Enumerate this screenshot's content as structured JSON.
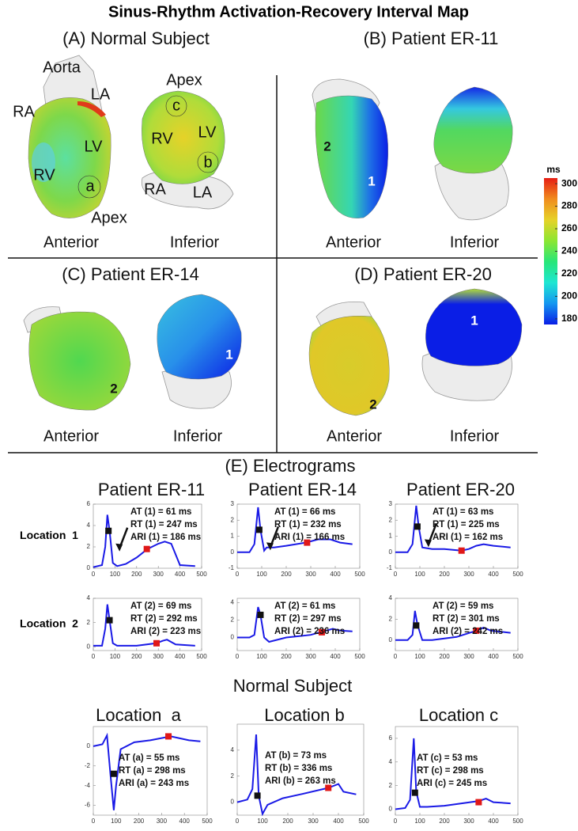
{
  "title": "Sinus-Rhythm Activation-Recovery Interval Map",
  "panels": [
    {
      "title": "(A) Normal Subject",
      "anterior": [
        "Aorta",
        "LA",
        "RA",
        "LV",
        "RV",
        "a",
        "Apex",
        "Anterior"
      ],
      "inferior": [
        "Apex",
        "c",
        "RV",
        "LV",
        "b",
        "RA",
        "LA",
        "Inferior"
      ]
    },
    {
      "title": "(B) Patient ER-11",
      "anterior": [
        "2",
        "1",
        "Anterior"
      ],
      "inferior": [
        "Inferior"
      ]
    },
    {
      "title": "(C) Patient ER-14",
      "anterior": [
        "2",
        "Anterior"
      ],
      "inferior": [
        "1",
        "Inferior"
      ]
    },
    {
      "title": "(D) Patient ER-20",
      "anterior": [
        "2",
        "Anterior"
      ],
      "inferior": [
        "1",
        "Inferior"
      ]
    }
  ],
  "colorbar": {
    "unit": "ms",
    "lim": [
      175,
      305
    ],
    "ticks": [
      180,
      200,
      220,
      240,
      260,
      280,
      300
    ],
    "colors": [
      "#0a1ee6",
      "#1496f0",
      "#1ee6d2",
      "#28e678",
      "#8ce632",
      "#e6d228",
      "#f08c1e",
      "#e61e14"
    ]
  },
  "electrograms": {
    "title": "(E) Electrograms",
    "patients": [
      "Patient ER-11",
      "Patient ER-14",
      "Patient ER-20"
    ],
    "locations": [
      "Location  1",
      "Location  2"
    ],
    "plots": [
      [
        {
          "ylim": [
            0,
            6
          ],
          "yticks": [
            0,
            2,
            4,
            6
          ],
          "xlim": [
            0,
            500
          ],
          "xticks": [
            0,
            100,
            200,
            300,
            400,
            500
          ],
          "annotations": [
            "AT (1)  = 61 ms",
            "RT (1)  = 247 ms",
            "ARI (1) = 186 ms"
          ],
          "trace": {
            "x": [
              0,
              40,
              55,
              65,
              75,
              90,
              110,
              150,
              200,
              250,
              300,
              330,
              360,
              400,
              470
            ],
            "y": [
              0.1,
              0.3,
              2,
              5,
              3.5,
              0.5,
              0.2,
              0.4,
              1,
              1.8,
              2.3,
              2.5,
              2.3,
              0.3,
              0.2
            ]
          },
          "at_marker": {
            "x": 70,
            "y": 3.5
          },
          "rt_marker": {
            "x": 247,
            "y": 1.8
          }
        },
        {
          "ylim": [
            -1,
            3
          ],
          "yticks": [
            -1,
            0,
            1,
            2,
            3
          ],
          "xlim": [
            0,
            500
          ],
          "xticks": [
            0,
            100,
            200,
            300,
            400,
            500
          ],
          "annotations": [
            "AT (1)  = 66 ms",
            "RT (1)  = 232 ms",
            "ARI (1) = 166 ms"
          ],
          "trace": {
            "x": [
              0,
              50,
              70,
              85,
              95,
              110,
              120,
              150,
              200,
              280,
              330,
              380,
              420,
              470
            ],
            "y": [
              0,
              0,
              0.5,
              2.8,
              1.4,
              0.1,
              0.3,
              0.3,
              0.4,
              0.6,
              0.8,
              0.8,
              0.6,
              0.5
            ]
          },
          "at_marker": {
            "x": 90,
            "y": 1.4
          },
          "rt_marker": {
            "x": 285,
            "y": 0.6
          }
        },
        {
          "ylim": [
            -1,
            3
          ],
          "yticks": [
            -1,
            0,
            1,
            2,
            3
          ],
          "xlim": [
            0,
            500
          ],
          "xticks": [
            0,
            100,
            200,
            300,
            400,
            500
          ],
          "annotations": [
            "AT (1)  = 63 ms",
            "RT (1)  = 225 ms",
            "ARI (1) = 162 ms"
          ],
          "trace": {
            "x": [
              0,
              50,
              70,
              85,
              95,
              110,
              150,
              200,
              270,
              300,
              330,
              360,
              400,
              470
            ],
            "y": [
              0,
              0,
              0.5,
              2.9,
              1.6,
              0.3,
              0.2,
              0.2,
              0.1,
              0.2,
              0.4,
              0.5,
              0.4,
              0.3
            ]
          },
          "at_marker": {
            "x": 90,
            "y": 1.6
          },
          "rt_marker": {
            "x": 270,
            "y": 0.1
          }
        }
      ],
      [
        {
          "ylim": [
            -0.3,
            4
          ],
          "yticks": [
            0,
            2,
            4
          ],
          "xlim": [
            0,
            500
          ],
          "xticks": [
            0,
            100,
            200,
            300,
            400,
            500
          ],
          "annotations": [
            "AT (2)  = 69 ms",
            "RT (2)  = 292 ms",
            "ARI (2) = 223 ms"
          ],
          "trace": {
            "x": [
              0,
              40,
              55,
              65,
              75,
              90,
              110,
              200,
              290,
              320,
              340,
              380,
              470
            ],
            "y": [
              0.1,
              0.1,
              1.5,
              3.5,
              2.2,
              0.3,
              0.1,
              0.1,
              0.3,
              0.5,
              0.6,
              0.2,
              0.1
            ]
          },
          "at_marker": {
            "x": 75,
            "y": 2.2
          },
          "rt_marker": {
            "x": 292,
            "y": 0.3
          }
        },
        {
          "ylim": [
            -1.5,
            4.5
          ],
          "yticks": [
            0,
            2,
            4
          ],
          "xlim": [
            0,
            500
          ],
          "xticks": [
            0,
            100,
            200,
            300,
            400,
            500
          ],
          "annotations": [
            "AT (2)  = 61 ms",
            "RT (2)  = 297 ms",
            "ARI (2) = 236 ms"
          ],
          "trace": {
            "x": [
              0,
              50,
              70,
              85,
              95,
              110,
              130,
              200,
              300,
              350,
              390,
              420,
              470
            ],
            "y": [
              0,
              0,
              0.3,
              3.5,
              2.6,
              0,
              -0.5,
              0,
              0.3,
              0.7,
              1,
              0.8,
              0.7
            ]
          },
          "at_marker": {
            "x": 95,
            "y": 2.6
          },
          "rt_marker": {
            "x": 345,
            "y": 0.6
          }
        },
        {
          "ylim": [
            -1,
            4
          ],
          "yticks": [
            0,
            2,
            4
          ],
          "xlim": [
            0,
            500
          ],
          "xticks": [
            0,
            100,
            200,
            300,
            400,
            500
          ],
          "annotations": [
            "AT (2)  = 59 ms",
            "RT (2)  = 301 ms",
            "ARI (2) = 242 ms"
          ],
          "trace": {
            "x": [
              0,
              50,
              70,
              80,
              90,
              110,
              150,
              250,
              330,
              360,
              390,
              430,
              470
            ],
            "y": [
              0,
              0,
              0.5,
              2.8,
              1.5,
              0,
              0,
              0.3,
              0.9,
              1.2,
              0.9,
              0.8,
              0.7
            ]
          },
          "at_marker": {
            "x": 85,
            "y": 1.4
          },
          "rt_marker": {
            "x": 330,
            "y": 0.9
          }
        }
      ]
    ]
  },
  "normal": {
    "title": "Normal Subject",
    "plots": [
      {
        "title": "Location  a",
        "ylim": [
          -7,
          2
        ],
        "yticks": [
          -6,
          -4,
          -2,
          0
        ],
        "xlim": [
          0,
          500
        ],
        "xticks": [
          0,
          100,
          200,
          300,
          400,
          500
        ],
        "annotations": [
          "AT (a)  = 55 ms",
          "RT (a)  = 298 ms",
          "ARI (a) = 243 ms"
        ],
        "trace": {
          "x": [
            0,
            40,
            60,
            75,
            90,
            100,
            120,
            180,
            250,
            340,
            380,
            420,
            470
          ],
          "y": [
            0,
            0.2,
            1.1,
            -2.8,
            -6.5,
            -4,
            -0.3,
            0.4,
            0.6,
            1,
            0.8,
            0.6,
            0.5
          ]
        },
        "at_marker": {
          "x": 90,
          "y": -2.8
        },
        "rt_marker": {
          "x": 330,
          "y": 1
        }
      },
      {
        "title": "Location b",
        "ylim": [
          -1,
          6
        ],
        "yticks": [
          0,
          2,
          4
        ],
        "xlim": [
          0,
          500
        ],
        "xticks": [
          0,
          100,
          200,
          300,
          400,
          500
        ],
        "annotations": [
          "AT (b)  = 73 ms",
          "RT (b)  = 336 ms",
          "ARI (b) = 263 ms"
        ],
        "trace": {
          "x": [
            0,
            40,
            60,
            75,
            85,
            100,
            120,
            180,
            250,
            360,
            400,
            420,
            470
          ],
          "y": [
            0,
            0.2,
            1,
            5.2,
            0.5,
            -0.9,
            -0.2,
            0.3,
            0.6,
            1.1,
            1.4,
            0.8,
            0.6
          ]
        },
        "at_marker": {
          "x": 80,
          "y": 0.5
        },
        "rt_marker": {
          "x": 360,
          "y": 1.1
        }
      },
      {
        "title": "Location c",
        "ylim": [
          -0.5,
          7
        ],
        "yticks": [
          0,
          2,
          4,
          6
        ],
        "xlim": [
          0,
          500
        ],
        "xticks": [
          0,
          100,
          200,
          300,
          400,
          500
        ],
        "annotations": [
          "AT (c)  = 53 ms",
          "RT (c)  = 298 ms",
          "ARI (c) = 245 ms"
        ],
        "trace": {
          "x": [
            0,
            40,
            60,
            75,
            85,
            100,
            130,
            200,
            270,
            340,
            370,
            400,
            470
          ],
          "y": [
            0,
            0.1,
            0.8,
            6,
            1.5,
            0.2,
            0.2,
            0.3,
            0.5,
            0.7,
            0.9,
            0.6,
            0.5
          ]
        },
        "at_marker": {
          "x": 80,
          "y": 1.4
        },
        "rt_marker": {
          "x": 340,
          "y": 0.6
        }
      }
    ]
  }
}
